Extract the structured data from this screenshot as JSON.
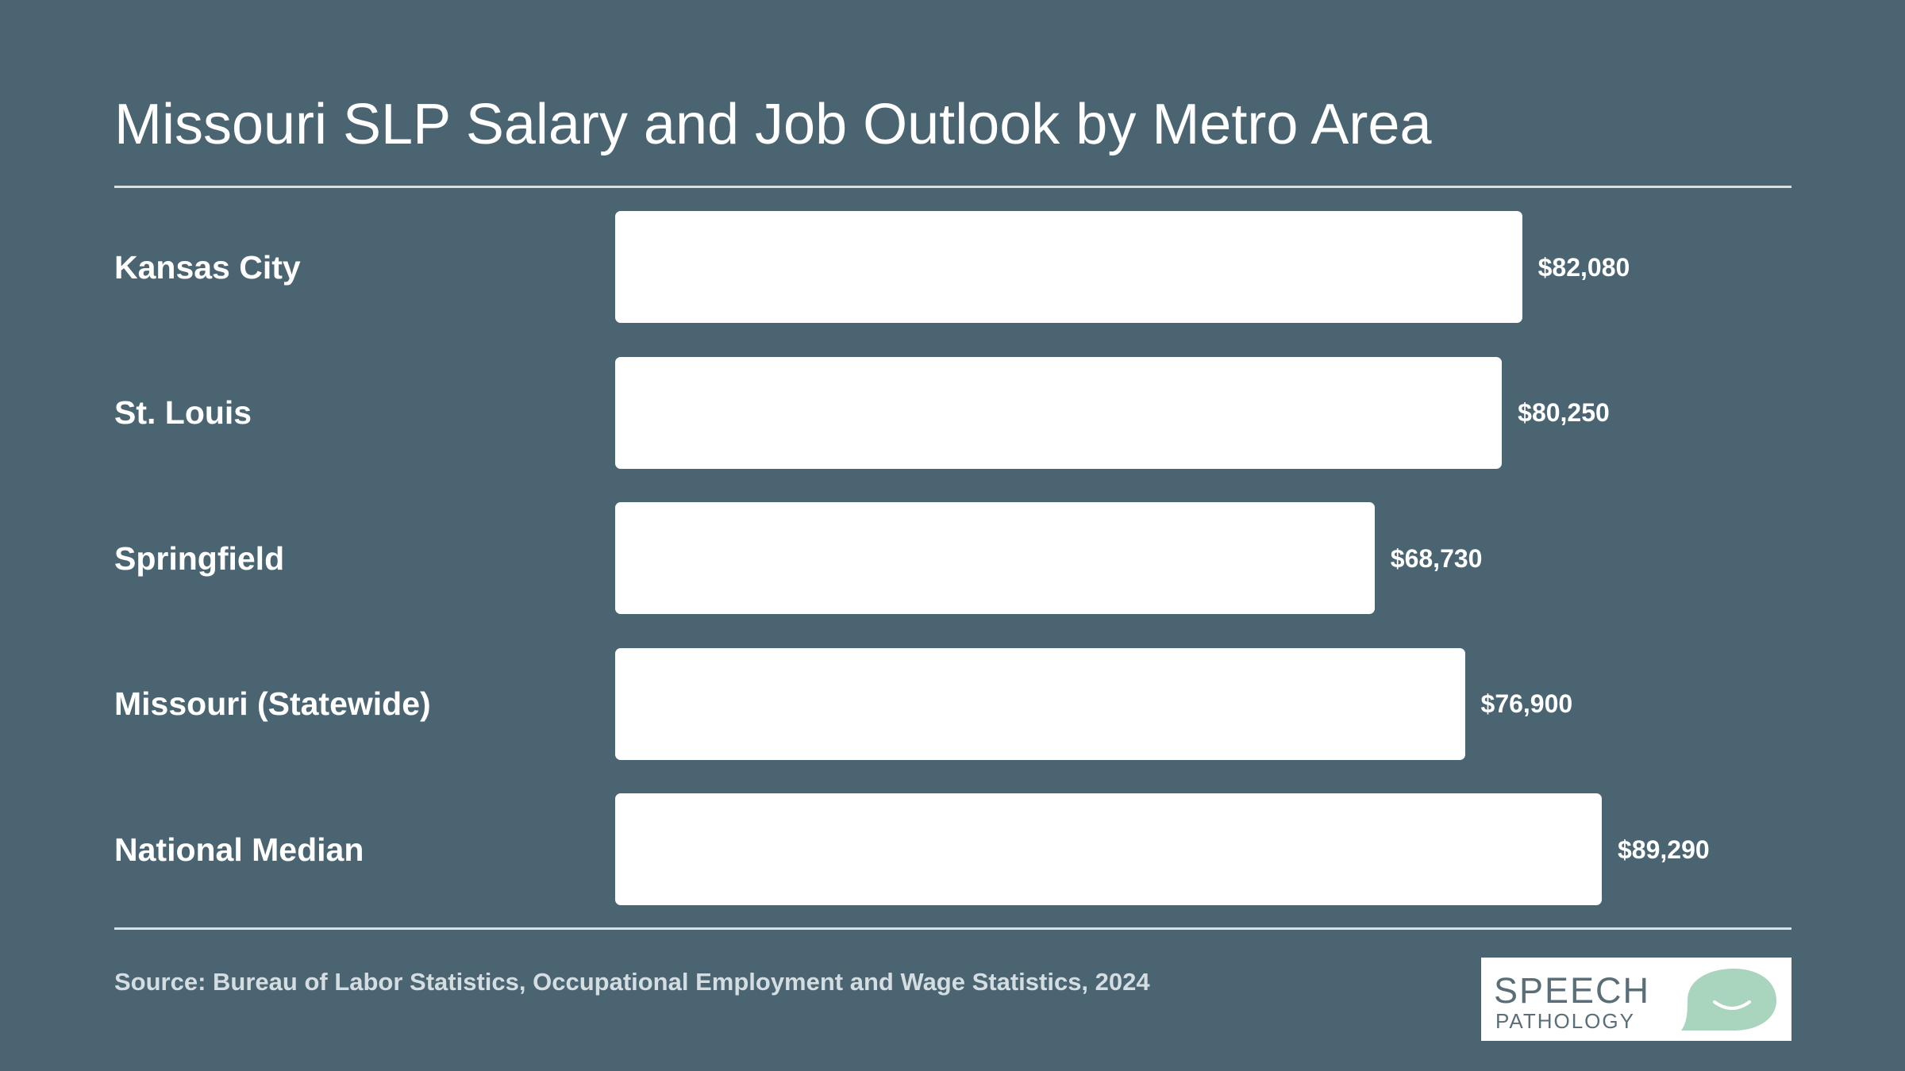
{
  "chart_data": {
    "type": "bar",
    "orientation": "horizontal",
    "title": "Missouri SLP Salary and Job Outlook by Metro Area",
    "categories": [
      "Kansas City",
      "St. Louis",
      "Springfield",
      "Missouri (Statewide)",
      "National Median"
    ],
    "values": [
      82080,
      80250,
      68730,
      76900,
      89290
    ],
    "value_labels": [
      "$82,080",
      "$80,250",
      "$68,730",
      "$76,900",
      "$89,290"
    ],
    "xlim": [
      0,
      89290
    ],
    "grid": false,
    "legend": "none",
    "bar_color": "#ffffff",
    "background_color": "#4a6571"
  },
  "footer": {
    "source": "Source: Bureau of Labor Statistics, Occupational Employment and Wage Statistics, 2024"
  },
  "logo": {
    "line1": "SPEECH",
    "line2": "PATHOLOGY",
    "icon": "speech-bubble-smile-icon",
    "bubble_color": "#a9d4bd"
  }
}
